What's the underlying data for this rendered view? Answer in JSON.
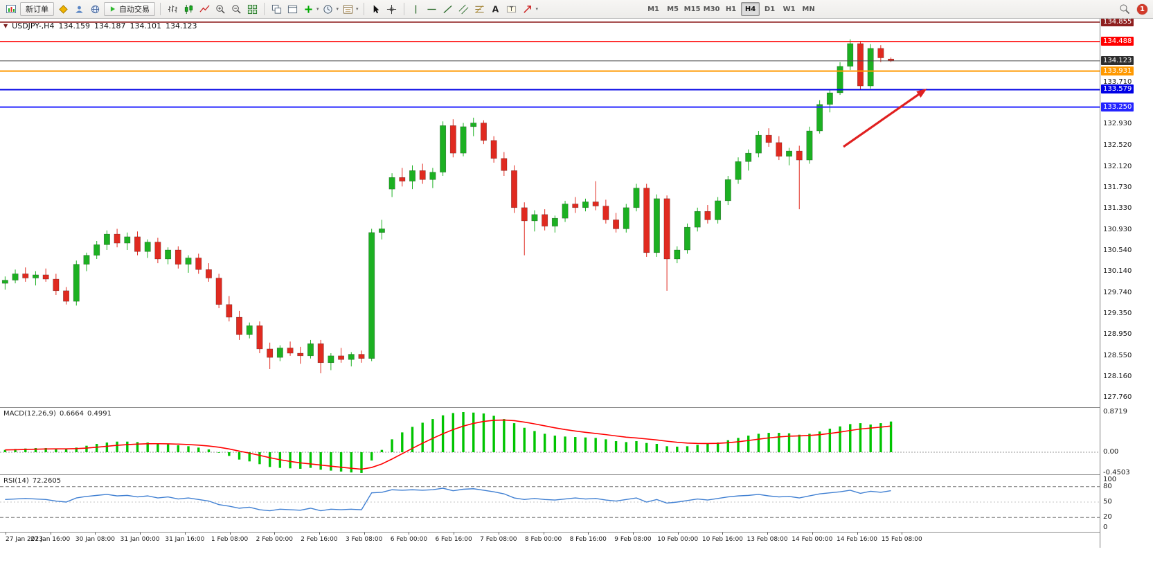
{
  "toolbar": {
    "new_order": "新订单",
    "autotrade": "自动交易",
    "timeframes": [
      "M1",
      "M5",
      "M15",
      "M30",
      "H1",
      "H4",
      "D1",
      "W1",
      "MN"
    ],
    "active_timeframe": "H4",
    "notification_count": "1"
  },
  "chart": {
    "symbol_period": "USDJPY-,H4",
    "open": "134.159",
    "high": "134.187",
    "low": "134.101",
    "close": "134.123"
  },
  "indicators": {
    "macd": {
      "label": "MACD(12,26,9)",
      "main_value": "0.6664",
      "signal_value": "0.4991"
    },
    "rsi": {
      "label": "RSI(14)",
      "value": "72.2605"
    }
  },
  "chart_data": {
    "type": "candlestick",
    "symbol": "USDJPY-",
    "timeframe": "H4",
    "grid": false,
    "bull_color": "#1cb022",
    "bear_color": "#e02a20",
    "price_axis": {
      "min": 127.58,
      "max": 134.92,
      "labels": [
        "133.710",
        "132.930",
        "132.520",
        "132.120",
        "131.730",
        "131.330",
        "130.930",
        "130.540",
        "130.140",
        "129.740",
        "129.350",
        "128.950",
        "128.550",
        "128.160",
        "127.760"
      ]
    },
    "time_axis": [
      "27 Jan 2023",
      "27 Jan 16:00",
      "30 Jan 08:00",
      "31 Jan 00:00",
      "31 Jan 16:00",
      "1 Feb 08:00",
      "2 Feb 00:00",
      "2 Feb 16:00",
      "3 Feb 08:00",
      "6 Feb 00:00",
      "6 Feb 16:00",
      "7 Feb 08:00",
      "8 Feb 00:00",
      "8 Feb 16:00",
      "9 Feb 08:00",
      "10 Feb 00:00",
      "10 Feb 16:00",
      "13 Feb 08:00",
      "14 Feb 00:00",
      "14 Feb 16:00",
      "15 Feb 08:00"
    ],
    "candles": [
      [
        129.92,
        130.05,
        129.8,
        129.98
      ],
      [
        129.98,
        130.18,
        129.92,
        130.1
      ],
      [
        130.1,
        130.22,
        129.95,
        130.02
      ],
      [
        130.02,
        130.15,
        129.88,
        130.08
      ],
      [
        130.08,
        130.2,
        129.95,
        130.0
      ],
      [
        130.0,
        130.1,
        129.7,
        129.78
      ],
      [
        129.78,
        129.85,
        129.52,
        129.58
      ],
      [
        129.58,
        130.35,
        129.5,
        130.28
      ],
      [
        130.28,
        130.5,
        130.15,
        130.45
      ],
      [
        130.45,
        130.72,
        130.38,
        130.65
      ],
      [
        130.65,
        130.92,
        130.55,
        130.85
      ],
      [
        130.85,
        130.95,
        130.6,
        130.68
      ],
      [
        130.68,
        130.88,
        130.55,
        130.8
      ],
      [
        130.8,
        130.9,
        130.45,
        130.52
      ],
      [
        130.52,
        130.75,
        130.4,
        130.7
      ],
      [
        130.7,
        130.78,
        130.3,
        130.38
      ],
      [
        130.38,
        130.6,
        130.28,
        130.55
      ],
      [
        130.55,
        130.62,
        130.2,
        130.28
      ],
      [
        130.28,
        130.45,
        130.12,
        130.4
      ],
      [
        130.4,
        130.48,
        130.1,
        130.18
      ],
      [
        130.18,
        130.3,
        129.95,
        130.02
      ],
      [
        130.02,
        130.1,
        129.45,
        129.52
      ],
      [
        129.52,
        129.68,
        129.2,
        129.28
      ],
      [
        129.28,
        129.4,
        128.85,
        128.95
      ],
      [
        128.95,
        129.18,
        128.88,
        129.12
      ],
      [
        129.12,
        129.2,
        128.6,
        128.68
      ],
      [
        128.68,
        128.8,
        128.3,
        128.52
      ],
      [
        128.52,
        128.75,
        128.45,
        128.7
      ],
      [
        128.7,
        128.82,
        128.55,
        128.6
      ],
      [
        128.6,
        128.72,
        128.4,
        128.55
      ],
      [
        128.55,
        128.85,
        128.5,
        128.78
      ],
      [
        128.78,
        128.85,
        128.22,
        128.42
      ],
      [
        128.42,
        128.6,
        128.28,
        128.55
      ],
      [
        128.55,
        128.7,
        128.42,
        128.48
      ],
      [
        128.48,
        128.62,
        128.35,
        128.58
      ],
      [
        128.58,
        128.65,
        128.42,
        128.5
      ],
      [
        128.5,
        130.95,
        128.45,
        130.88
      ],
      [
        130.88,
        131.12,
        130.75,
        130.95
      ],
      [
        131.7,
        132.0,
        131.55,
        131.92
      ],
      [
        131.92,
        132.1,
        131.75,
        131.85
      ],
      [
        131.85,
        132.15,
        131.7,
        132.05
      ],
      [
        132.05,
        132.18,
        131.8,
        131.88
      ],
      [
        131.88,
        132.1,
        131.72,
        132.02
      ],
      [
        132.02,
        132.98,
        131.95,
        132.9
      ],
      [
        132.9,
        133.02,
        132.3,
        132.38
      ],
      [
        132.38,
        132.95,
        132.32,
        132.88
      ],
      [
        132.88,
        133.05,
        132.7,
        132.95
      ],
      [
        132.95,
        133.0,
        132.55,
        132.62
      ],
      [
        132.62,
        132.7,
        132.2,
        132.28
      ],
      [
        132.28,
        132.4,
        131.95,
        132.05
      ],
      [
        132.05,
        132.15,
        131.25,
        131.35
      ],
      [
        131.35,
        131.45,
        130.45,
        131.1
      ],
      [
        131.1,
        131.3,
        130.9,
        131.22
      ],
      [
        131.22,
        131.32,
        130.92,
        131.0
      ],
      [
        131.0,
        131.2,
        130.88,
        131.15
      ],
      [
        131.15,
        131.48,
        131.08,
        131.42
      ],
      [
        131.42,
        131.55,
        131.25,
        131.35
      ],
      [
        131.35,
        131.52,
        131.28,
        131.46
      ],
      [
        131.46,
        131.85,
        131.3,
        131.38
      ],
      [
        131.38,
        131.5,
        131.05,
        131.12
      ],
      [
        131.12,
        131.25,
        130.88,
        130.95
      ],
      [
        130.95,
        131.42,
        130.88,
        131.35
      ],
      [
        131.35,
        131.8,
        131.28,
        131.72
      ],
      [
        131.72,
        131.8,
        130.42,
        130.5
      ],
      [
        130.5,
        131.6,
        130.42,
        131.52
      ],
      [
        131.52,
        131.58,
        129.78,
        130.38
      ],
      [
        130.38,
        130.62,
        130.3,
        130.55
      ],
      [
        130.55,
        131.05,
        130.48,
        130.98
      ],
      [
        130.98,
        131.35,
        130.9,
        131.28
      ],
      [
        131.28,
        131.4,
        131.05,
        131.12
      ],
      [
        131.12,
        131.55,
        131.05,
        131.48
      ],
      [
        131.48,
        131.95,
        131.4,
        131.88
      ],
      [
        131.88,
        132.3,
        131.8,
        132.22
      ],
      [
        132.22,
        132.45,
        132.05,
        132.38
      ],
      [
        132.38,
        132.8,
        132.3,
        132.72
      ],
      [
        132.72,
        132.85,
        132.5,
        132.58
      ],
      [
        132.58,
        132.7,
        132.25,
        132.32
      ],
      [
        132.32,
        132.48,
        132.15,
        132.42
      ],
      [
        132.42,
        132.52,
        131.32,
        132.25
      ],
      [
        132.25,
        132.88,
        132.18,
        132.8
      ],
      [
        132.8,
        133.38,
        132.75,
        133.3
      ],
      [
        133.3,
        133.58,
        133.15,
        133.52
      ],
      [
        133.52,
        134.1,
        133.48,
        134.02
      ],
      [
        134.02,
        134.53,
        133.95,
        134.45
      ],
      [
        134.45,
        134.5,
        133.57,
        133.65
      ],
      [
        133.65,
        134.44,
        133.6,
        134.36
      ],
      [
        134.36,
        134.42,
        134.1,
        134.18
      ],
      [
        134.159,
        134.187,
        134.101,
        134.123
      ]
    ],
    "h_lines": [
      {
        "price": 134.855,
        "label": "134.855",
        "color": "#8e1f1f",
        "width": 1.6
      },
      {
        "price": 134.488,
        "label": "134.488",
        "color": "#ff0000",
        "width": 1.6
      },
      {
        "price": 133.931,
        "label": "133.931",
        "color": "#ff9900",
        "width": 2
      },
      {
        "price": 133.579,
        "label": "133.579",
        "color": "#0000e6",
        "width": 2
      },
      {
        "price": 133.25,
        "label": "133.250",
        "color": "#2424ff",
        "width": 2
      }
    ],
    "current_price": {
      "value": 134.123,
      "label": "134.123",
      "color": "#2e2e2e"
    },
    "arrow": {
      "color": "#e02020",
      "from": {
        "x_frac": 0.767,
        "price": 132.5
      },
      "to": {
        "x_frac": 0.843,
        "price": 133.6
      }
    },
    "macd": {
      "scale": [
        "0.8719",
        "0.00",
        "-0.4503"
      ],
      "scale_values": [
        0.8719,
        0,
        -0.4503
      ],
      "histogram_color": "#00c400",
      "signal_color": "#ff0000",
      "histogram": [
        0.05,
        0.07,
        0.08,
        0.09,
        0.09,
        0.08,
        0.07,
        0.1,
        0.14,
        0.18,
        0.21,
        0.23,
        0.23,
        0.22,
        0.21,
        0.19,
        0.17,
        0.15,
        0.13,
        0.1,
        0.06,
        0.0,
        -0.08,
        -0.16,
        -0.2,
        -0.26,
        -0.32,
        -0.34,
        -0.35,
        -0.36,
        -0.34,
        -0.38,
        -0.4,
        -0.42,
        -0.44,
        -0.45,
        -0.18,
        0.05,
        0.28,
        0.43,
        0.55,
        0.64,
        0.72,
        0.8,
        0.85,
        0.872,
        0.86,
        0.84,
        0.79,
        0.72,
        0.63,
        0.53,
        0.46,
        0.4,
        0.36,
        0.34,
        0.33,
        0.32,
        0.31,
        0.28,
        0.24,
        0.22,
        0.24,
        0.2,
        0.18,
        0.13,
        0.12,
        0.13,
        0.16,
        0.18,
        0.21,
        0.26,
        0.31,
        0.36,
        0.4,
        0.42,
        0.42,
        0.41,
        0.38,
        0.4,
        0.45,
        0.51,
        0.56,
        0.61,
        0.63,
        0.6,
        0.63,
        0.666
      ]
    },
    "rsi": {
      "scale": [
        "100",
        "80",
        "50",
        "20",
        "0"
      ],
      "scale_values": [
        100,
        80,
        50,
        20,
        0
      ],
      "levels": [
        80,
        50,
        20
      ],
      "line_color": "#3f7fd2",
      "values": [
        55,
        56,
        57,
        56,
        55,
        52,
        50,
        58,
        61,
        63,
        65,
        62,
        63,
        60,
        62,
        58,
        60,
        56,
        58,
        55,
        52,
        45,
        42,
        38,
        40,
        35,
        33,
        36,
        35,
        34,
        38,
        33,
        36,
        35,
        36,
        35,
        68,
        69,
        74,
        73,
        74,
        73,
        74,
        77,
        72,
        75,
        76,
        73,
        70,
        66,
        58,
        55,
        57,
        55,
        54,
        56,
        58,
        56,
        57,
        54,
        52,
        55,
        58,
        50,
        55,
        48,
        50,
        53,
        56,
        54,
        57,
        60,
        62,
        63,
        65,
        62,
        60,
        61,
        58,
        62,
        66,
        68,
        70,
        73,
        67,
        71,
        69,
        72.26
      ]
    }
  }
}
